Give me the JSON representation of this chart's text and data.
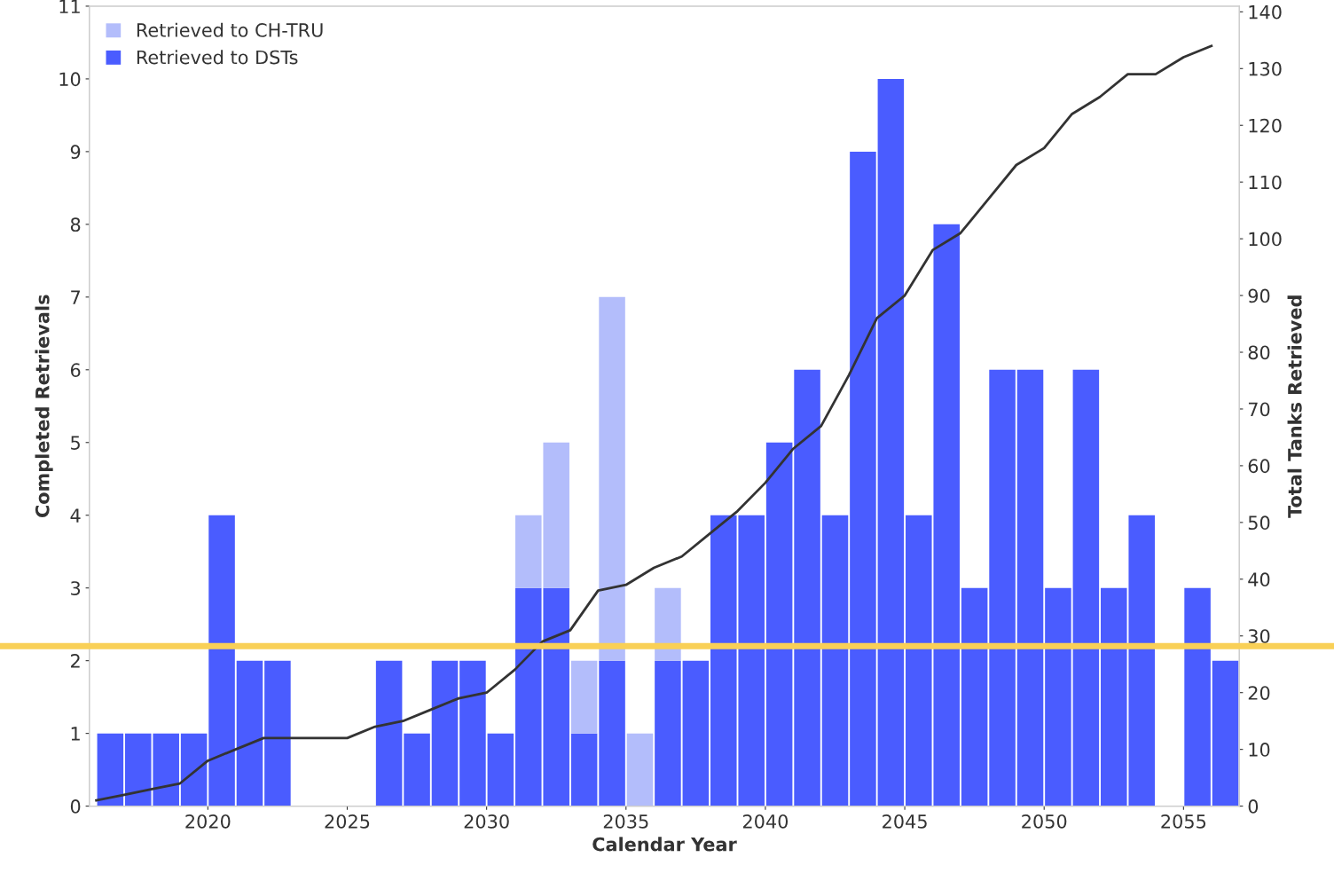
{
  "chart_data": {
    "type": "bar",
    "stacked": true,
    "xlabel": "Calendar Year",
    "ylabel": "Completed Retrievals",
    "y2label": "Total Tanks Retrieved",
    "x": [
      2016.5,
      2017.5,
      2018.5,
      2019.5,
      2020.5,
      2021.5,
      2022.5,
      2023.5,
      2024.5,
      2025.5,
      2026.5,
      2027.5,
      2028.5,
      2029.5,
      2030.5,
      2031.5,
      2032.5,
      2033.5,
      2034.5,
      2035.5,
      2036.5,
      2037.5,
      2038.5,
      2039.5,
      2040.5,
      2041.5,
      2042.5,
      2043.5,
      2044.5,
      2045.5,
      2046.5,
      2047.5,
      2048.5,
      2049.5,
      2050.5,
      2051.5,
      2052.5,
      2053.5,
      2054.5,
      2055.5,
      2056.5
    ],
    "series": [
      {
        "name": "Retrieved to DSTs",
        "color": "#4a5cff",
        "values": [
          1,
          1,
          1,
          1,
          4,
          2,
          2,
          0,
          0,
          0,
          2,
          1,
          2,
          2,
          1,
          3,
          3,
          1,
          2,
          0,
          2,
          2,
          4,
          4,
          5,
          6,
          4,
          9,
          10,
          4,
          8,
          3,
          6,
          6,
          3,
          6,
          3,
          4,
          0,
          3,
          2
        ]
      },
      {
        "name": "Retrieved to CH-TRU",
        "color": "#b3bdfb",
        "values": [
          0,
          0,
          0,
          0,
          0,
          0,
          0,
          0,
          0,
          0,
          0,
          0,
          0,
          0,
          0,
          1,
          2,
          1,
          5,
          1,
          1,
          0,
          0,
          0,
          0,
          0,
          0,
          0,
          0,
          0,
          0,
          0,
          0,
          0,
          0,
          0,
          0,
          0,
          0,
          0,
          0
        ]
      },
      {
        "type": "line",
        "axis": "y2",
        "color": "#333333",
        "x": [
          2016,
          2017,
          2018,
          2019,
          2020,
          2021,
          2022,
          2023,
          2024,
          2025,
          2026,
          2027,
          2028,
          2029,
          2030,
          2031,
          2032,
          2033,
          2034,
          2035,
          2036,
          2037,
          2038,
          2039,
          2040,
          2041,
          2042,
          2043,
          2044,
          2045,
          2046,
          2047,
          2048,
          2049,
          2050,
          2051,
          2052,
          2053,
          2054,
          2055,
          2056
        ],
        "values": [
          1,
          2,
          3,
          4,
          8,
          10,
          12,
          12,
          12,
          12,
          14,
          15,
          17,
          19,
          20,
          24,
          29,
          31,
          38,
          39,
          42,
          44,
          48,
          52,
          57,
          63,
          67,
          76,
          86,
          90,
          98,
          101,
          107,
          113,
          116,
          122,
          125,
          129,
          129,
          132,
          134
        ]
      }
    ],
    "xlim": [
      2015.75,
      2057
    ],
    "xticks": [
      2020,
      2025,
      2030,
      2035,
      2040,
      2045,
      2050,
      2055
    ],
    "ylim": [
      0,
      11
    ],
    "yticks": [
      0,
      1,
      2,
      3,
      4,
      5,
      6,
      7,
      8,
      9,
      10,
      11
    ],
    "y2lim": [
      0,
      141
    ],
    "y2ticks": [
      0,
      10,
      20,
      30,
      40,
      50,
      60,
      70,
      80,
      90,
      100,
      110,
      120,
      130,
      140
    ],
    "ref_lines": [
      {
        "axis": "y",
        "value": 2.2,
        "color": "#f9d057"
      }
    ],
    "legend": "top left",
    "grid": false
  }
}
